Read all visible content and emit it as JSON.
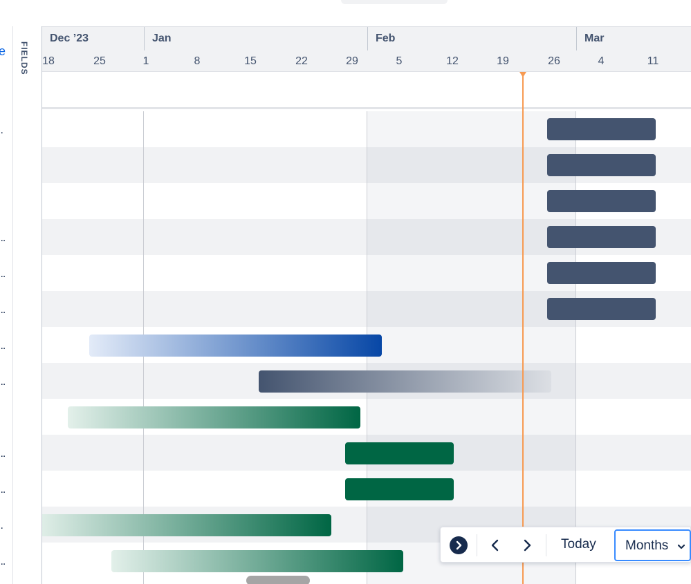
{
  "sidebar": {
    "fields_label": "FIELDS",
    "cut_link_fragment": "e",
    "row_truncations": [
      "..",
      "",
      "",
      "...",
      "...",
      "...",
      "...",
      "...",
      "",
      "...",
      "...",
      "..",
      "..."
    ]
  },
  "timeline": {
    "months": [
      "Dec ’23",
      "Jan",
      "Feb",
      "Mar"
    ],
    "days": [
      "18",
      "25",
      "1",
      "8",
      "15",
      "22",
      "29",
      "5",
      "12",
      "19",
      "26",
      "4",
      "11"
    ],
    "rows": [
      {
        "bar_style": "solid-navy"
      },
      {
        "bar_style": "solid-navy"
      },
      {
        "bar_style": "solid-navy"
      },
      {
        "bar_style": "solid-navy"
      },
      {
        "bar_style": "solid-navy"
      },
      {
        "bar_style": "solid-navy"
      },
      {
        "bar_style": "grad-blue"
      },
      {
        "bar_style": "grad-navy"
      },
      {
        "bar_style": "grad-green"
      },
      {
        "bar_style": "solid-green"
      },
      {
        "bar_style": "solid-green"
      },
      {
        "bar_style": "grad-green"
      },
      {
        "bar_style": "grad-green"
      }
    ]
  },
  "controls": {
    "expand_icon": "chevron-right-circle-icon",
    "prev_icon": "chevron-left-icon",
    "next_icon": "chevron-right-icon",
    "today_label": "Today",
    "view_mode_label": "Months",
    "view_mode_icon": "chevron-down-icon"
  },
  "colors": {
    "today_marker": "#f79a52",
    "navy_bar": "#44546f",
    "green_bar": "#006644",
    "blue_bar": "#0747a6",
    "focus_border": "#388bff"
  }
}
